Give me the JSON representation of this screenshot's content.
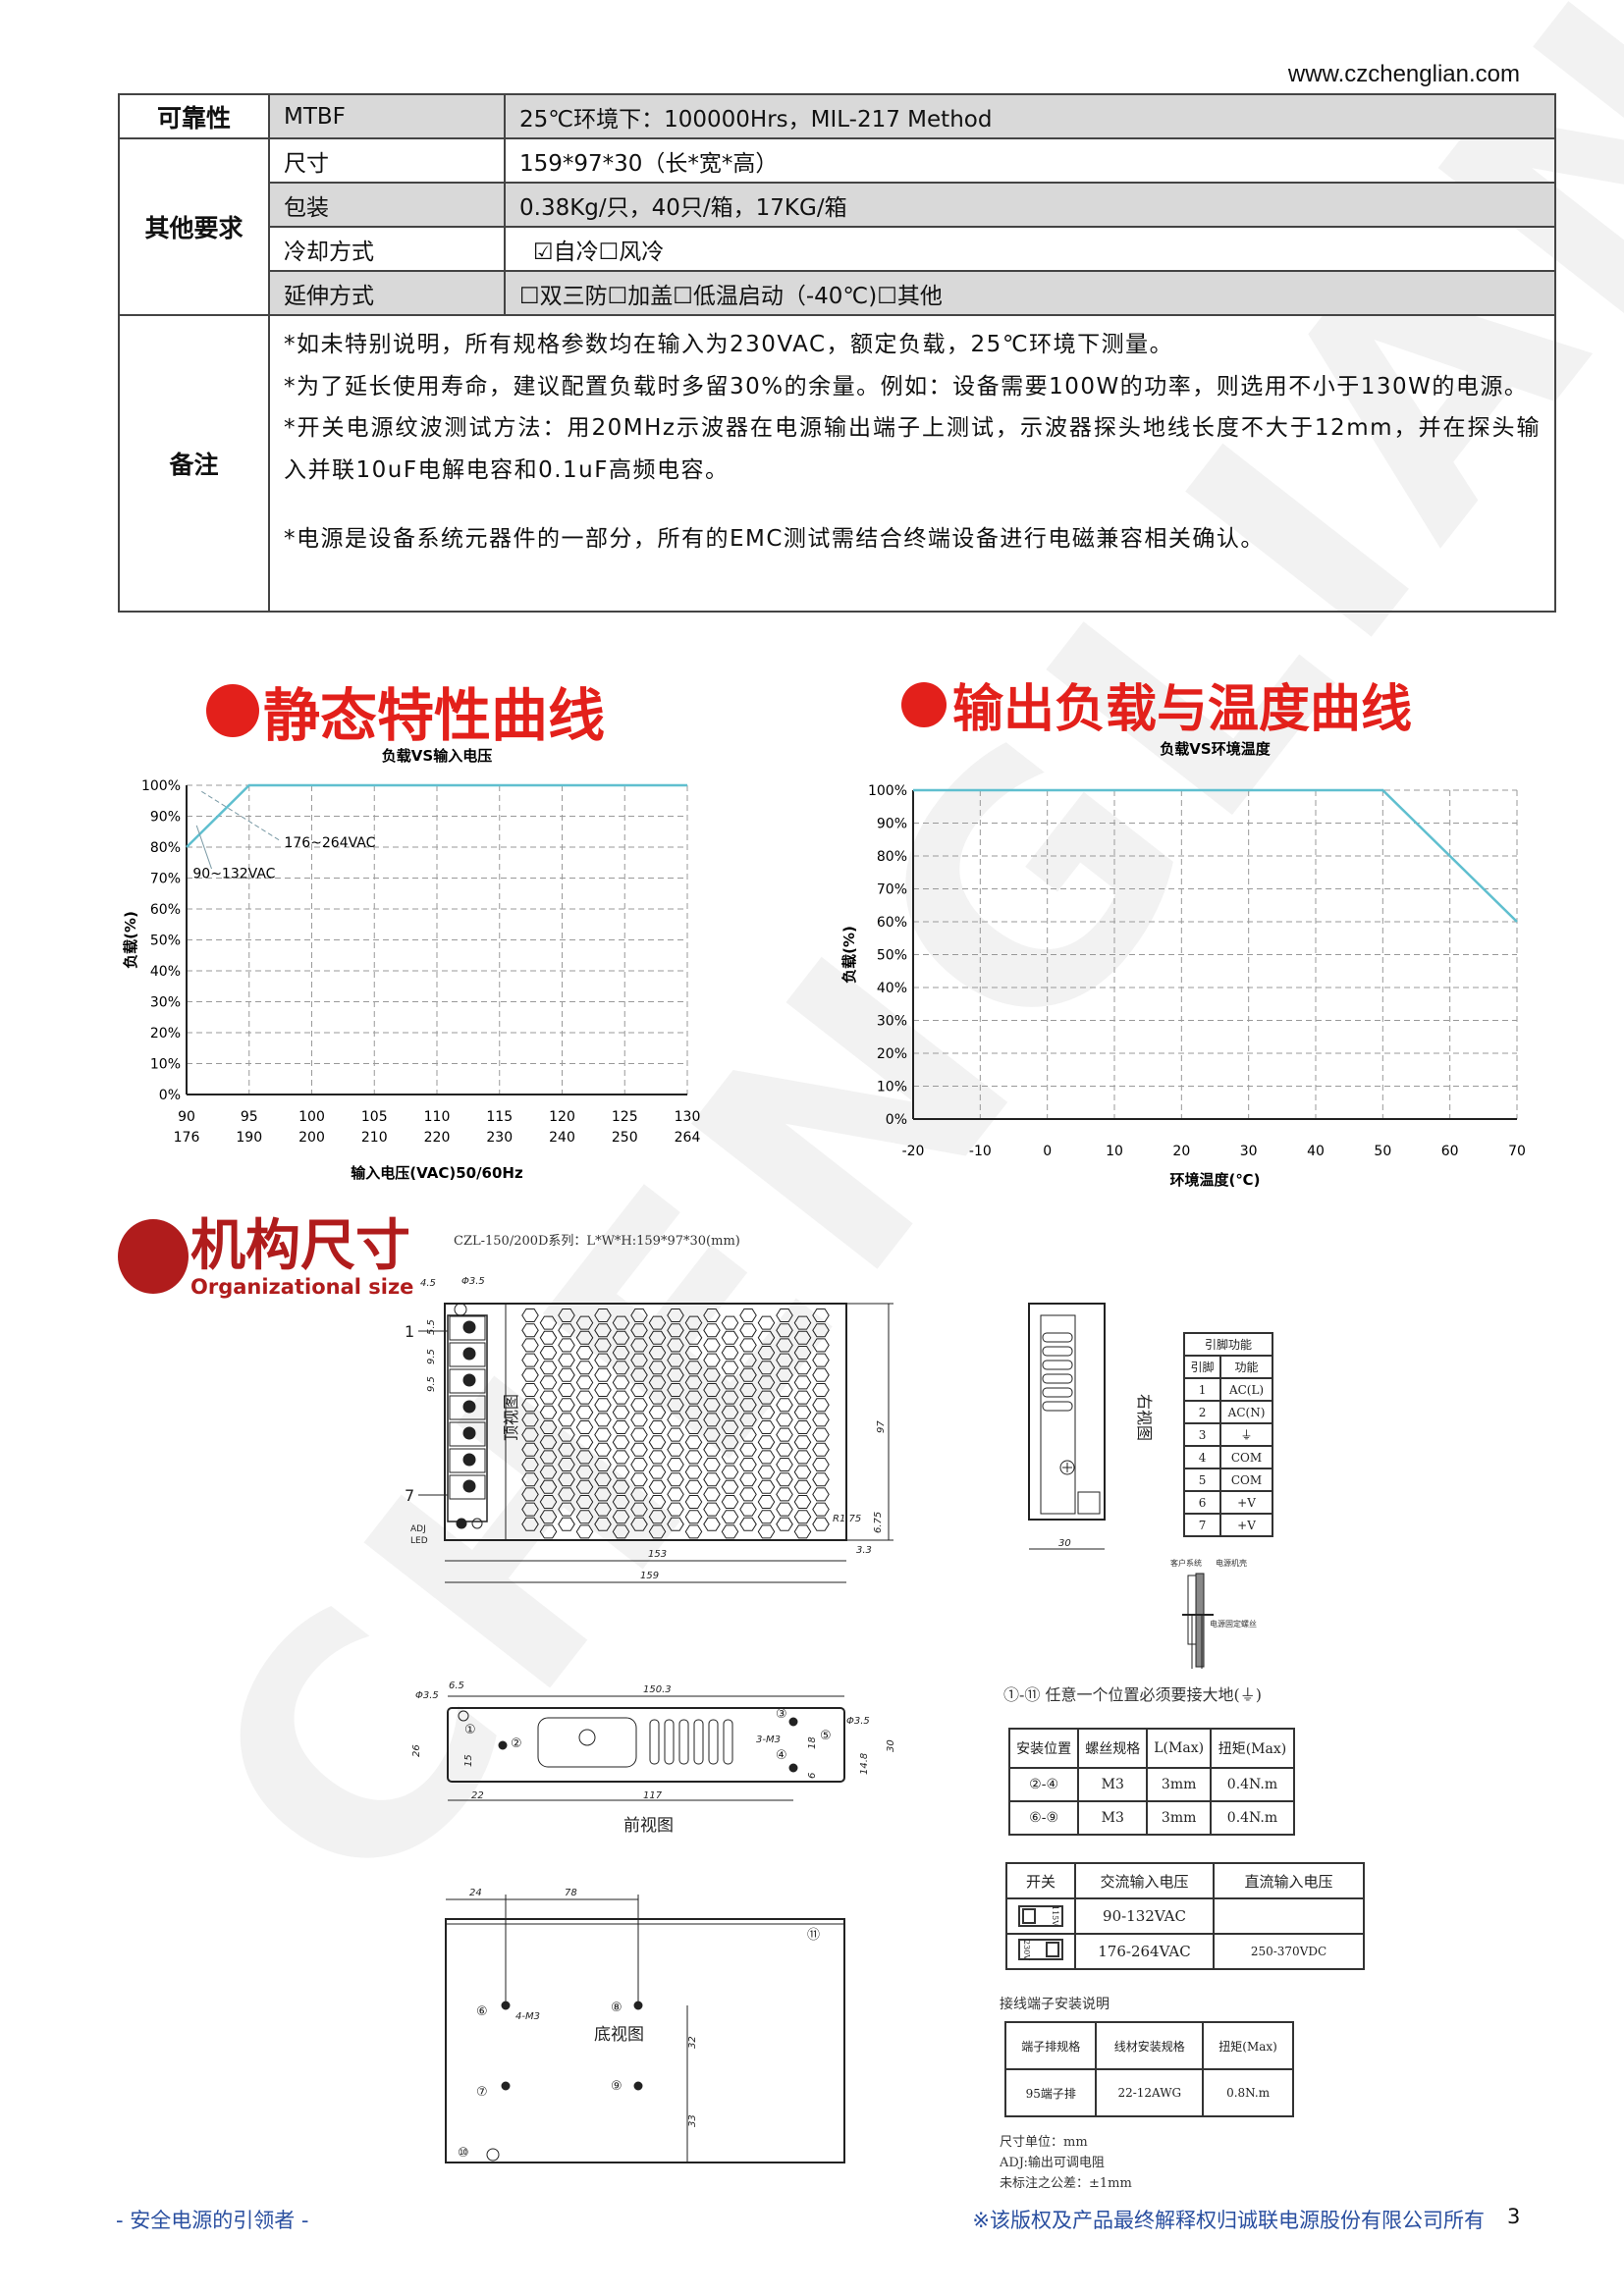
{
  "header": {
    "url": "www.czchenglian.com"
  },
  "spec_table": {
    "reliability": {
      "label": "可靠性",
      "item": "MTBF",
      "value": "25℃环境下：100000Hrs，MIL-217 Method"
    },
    "other": {
      "label": "其他要求",
      "rows": [
        {
          "item": "尺寸",
          "value": "159*97*30（长*宽*高）"
        },
        {
          "item": "包装",
          "value": "0.38Kg/只，40只/箱，17KG/箱"
        },
        {
          "item": "冷却方式",
          "value": "☑自冷☐风冷"
        },
        {
          "item": "延伸方式",
          "value": "☐双三防☐加盖☐低温启动（-40℃)☐其他"
        }
      ]
    },
    "remarks": {
      "label": "备注",
      "lines": [
        "*如未特别说明，所有规格参数均在输入为230VAC，额定负载，25℃环境下测量。",
        "*为了延长使用寿命，建议配置负载时多留30%的余量。例如：设备需要100W的功率，则选用不小于130W的电源。",
        "*开关电源纹波测试方法：用20MHz示波器在电源输出端子上测试，示波器探头地线长度不大于12mm，并在探头输入并联10uF电解电容和0.1uF高频电容。",
        "*电源是设备系统元器件的一部分，所有的EMC测试需结合终端设备进行电磁兼容相关确认。"
      ]
    }
  },
  "sections": {
    "static_curve": "静态特性曲线",
    "temp_curve": "输出负载与温度曲线",
    "mechanical": "机构尺寸",
    "mechanical_en": "Organizational size",
    "mechanical_caption": "CZL-150/200D系列：L*W*H:159*97*30(mm)"
  },
  "chart_data": [
    {
      "type": "line",
      "title": "负载VS输入电压",
      "xlabel": "输入电压(VAC)50/60Hz",
      "ylabel": "负载(%)",
      "x": [
        90,
        95,
        100,
        105,
        110,
        115,
        120,
        125,
        130
      ],
      "x_secondary_ticks": [
        176,
        190,
        200,
        210,
        220,
        230,
        240,
        250,
        264
      ],
      "yticks": [
        "0%",
        "10%",
        "20%",
        "30%",
        "40%",
        "50%",
        "60%",
        "70%",
        "80%",
        "90%",
        "100%"
      ],
      "xlim": [
        90,
        130
      ],
      "ylim": [
        0,
        100
      ],
      "grid": true,
      "series": [
        {
          "points": [
            [
              90,
              80
            ],
            [
              95,
              100
            ],
            [
              130,
              100
            ]
          ]
        }
      ],
      "annotations": [
        "176~264VAC",
        "90~132VAC"
      ],
      "line_color": "#5fbfcf"
    },
    {
      "type": "line",
      "title": "负载VS环境温度",
      "xlabel": "环境温度(℃)",
      "ylabel": "负载(%)",
      "x": [
        -20,
        -10,
        0,
        10,
        20,
        30,
        40,
        50,
        60,
        70
      ],
      "yticks": [
        "0%",
        "10%",
        "20%",
        "30%",
        "40%",
        "50%",
        "60%",
        "70%",
        "80%",
        "90%",
        "100%"
      ],
      "xlim": [
        -20,
        70
      ],
      "ylim": [
        0,
        100
      ],
      "grid": true,
      "series": [
        {
          "points": [
            [
              -20,
              100
            ],
            [
              50,
              100
            ],
            [
              70,
              60
            ]
          ]
        }
      ],
      "line_color": "#5fbfcf"
    }
  ],
  "drawings": {
    "top_view": {
      "label": "顶视图",
      "dims": [
        "4.5",
        "Φ3.5",
        "5.5",
        "9.5",
        "9.5",
        "97",
        "R1.75",
        "6.75",
        "3.3",
        "153",
        "159"
      ],
      "pins": [
        "1",
        "7"
      ],
      "adj": "ADJ",
      "led": "LED"
    },
    "right_view": {
      "label": "右视图",
      "dims": [
        "30"
      ]
    },
    "front_view": {
      "label": "前视图",
      "dims": [
        "6.5",
        "150.3",
        "Φ3.5",
        "26",
        "15",
        "22",
        "117",
        "3-M3",
        "18",
        "6",
        "Φ3.5",
        "14.8",
        "30"
      ],
      "marks": [
        "①",
        "②",
        "③",
        "④",
        "⑤"
      ]
    },
    "bottom_view": {
      "label": "底视图",
      "dims": [
        "24",
        "78",
        "4-M3",
        "32",
        "33"
      ],
      "marks": [
        "⑥",
        "⑦",
        "⑧",
        "⑨",
        "⑩",
        "⑪"
      ]
    },
    "screw_detail": {
      "customer": "客户系统",
      "housing": "电源机壳",
      "screw": "电源固定螺丝"
    }
  },
  "pin_table": {
    "title": "引脚功能",
    "headers": [
      "引脚",
      "功能"
    ],
    "rows": [
      [
        "1",
        "AC(L)"
      ],
      [
        "2",
        "AC(N)"
      ],
      [
        "3",
        "⏚"
      ],
      [
        "4",
        "COM"
      ],
      [
        "5",
        "COM"
      ],
      [
        "6",
        "+V"
      ],
      [
        "7",
        "+V"
      ]
    ]
  },
  "ground_note": "①-⑪ 任意一个位置必须要接大地(⏚)",
  "mount_table": {
    "headers": [
      "安装位置",
      "螺丝规格",
      "L(Max)",
      "扭矩(Max)"
    ],
    "rows": [
      [
        "②-④",
        "M3",
        "3mm",
        "0.4N.m"
      ],
      [
        "⑥-⑨",
        "M3",
        "3mm",
        "0.4N.m"
      ]
    ]
  },
  "switch_table": {
    "headers": [
      "开关",
      "交流输入电压",
      "直流输入电压"
    ],
    "rows": [
      {
        "switch": "115V",
        "ac": "90-132VAC",
        "dc": ""
      },
      {
        "switch": "230V",
        "ac": "176-264VAC",
        "dc": "250-370VDC"
      }
    ]
  },
  "terminal": {
    "label": "接线端子安装说明",
    "headers": [
      "端子排规格",
      "线材安装规格",
      "扭矩(Max)"
    ],
    "row": [
      "95端子排",
      "22-12AWG",
      "0.8N.m"
    ]
  },
  "notes": [
    "尺寸单位：mm",
    "ADJ:输出可调电阻",
    "未标注之公差：±1mm"
  ],
  "footer": {
    "left": "- 安全电源的引领者 -",
    "right": "※该版权及产品最终解释权归诚联电源股份有限公司所有",
    "page": "3"
  },
  "watermark": "CHENGLIAN",
  "colors": {
    "heading_red": "#e3201b",
    "mech_red": "#b01c1c",
    "footer_blue": "#2a4fa0",
    "row_gray": "#d9d9d9"
  }
}
